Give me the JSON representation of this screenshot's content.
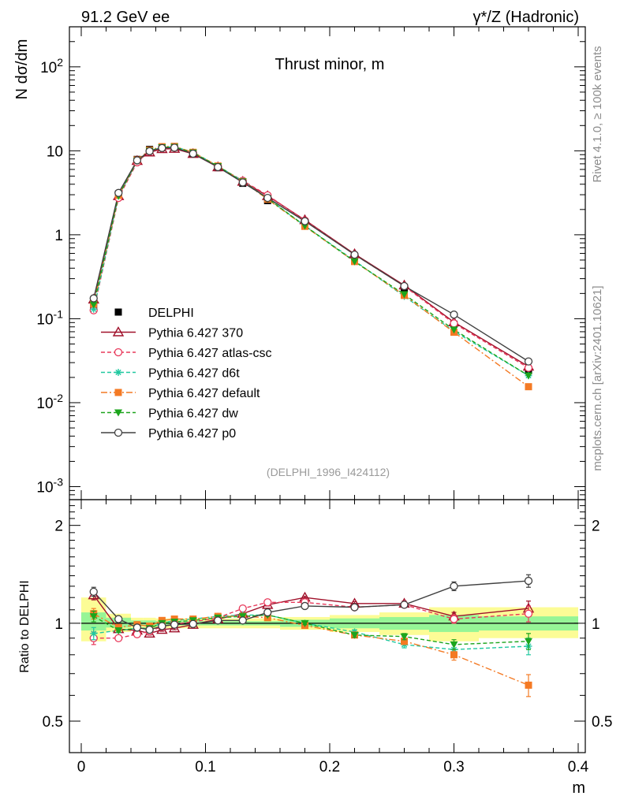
{
  "header": {
    "left": "91.2 GeV ee",
    "right": "γ*/Z (Hadronic)",
    "side_top": "Rivet 4.1.0, ≥ 100k events",
    "side_bottom": "mcplots.cern.ch [arXiv:2401.10621]"
  },
  "chart_data": [
    {
      "type": "line",
      "panel": "main",
      "title": "Thrust minor, m",
      "ylabel": "N  dσ/dm",
      "yscale": "log",
      "xlim": [
        0,
        0.4
      ],
      "ylim": [
        0.0007,
        300
      ],
      "yticks": [
        {
          "value": 0.001,
          "base": "10",
          "exp": "-3"
        },
        {
          "value": 0.01,
          "base": "10",
          "exp": "-2"
        },
        {
          "value": 0.1,
          "base": "10",
          "exp": "-1"
        },
        {
          "value": 1,
          "base": "1",
          "exp": ""
        },
        {
          "value": 10,
          "base": "10",
          "exp": ""
        },
        {
          "value": 100,
          "base": "10",
          "exp": "2"
        }
      ],
      "watermark": "(DELPHI_1996_I424112)",
      "x": [
        0.01,
        0.03,
        0.045,
        0.055,
        0.065,
        0.075,
        0.09,
        0.11,
        0.13,
        0.15,
        0.18,
        0.22,
        0.26,
        0.3,
        0.36
      ],
      "series": [
        {
          "name": "DELPHI",
          "color": "#000000",
          "marker": "square-filled",
          "dash": "none",
          "values": [
            0.14,
            3.05,
            7.9,
            10.4,
            11.0,
            11.0,
            9.3,
            6.3,
            4.1,
            2.55,
            1.28,
            0.52,
            0.215,
            0.086,
            0.024
          ]
        },
        {
          "name": "Pythia 6.427 370",
          "color": "#a0102a",
          "marker": "triangle-open",
          "dash": "solid",
          "values": [
            0.17,
            2.9,
            7.6,
            9.6,
            10.5,
            10.6,
            9.2,
            6.4,
            4.3,
            2.9,
            1.5,
            0.59,
            0.25,
            0.091,
            0.027
          ]
        },
        {
          "name": "Pythia 6.427 atlas-csc",
          "color": "#e8385a",
          "marker": "circle-open",
          "dash": "5,3",
          "values": [
            0.126,
            2.75,
            7.3,
            9.8,
            10.7,
            10.9,
            9.4,
            6.5,
            4.4,
            2.95,
            1.48,
            0.58,
            0.245,
            0.088,
            0.026
          ]
        },
        {
          "name": "Pythia 6.427 d6t",
          "color": "#20c8a0",
          "marker": "star",
          "dash": "5,3",
          "values": [
            0.13,
            2.9,
            7.6,
            10.0,
            11.0,
            11.2,
            9.6,
            6.6,
            4.35,
            2.7,
            1.28,
            0.49,
            0.185,
            0.071,
            0.021
          ]
        },
        {
          "name": "Pythia 6.427 default",
          "color": "#f47a24",
          "marker": "square-filled",
          "dash": "8,3,2,3",
          "values": [
            0.15,
            2.95,
            7.8,
            10.2,
            11.2,
            11.3,
            9.6,
            6.6,
            4.3,
            2.65,
            1.26,
            0.48,
            0.19,
            0.069,
            0.0155
          ]
        },
        {
          "name": "Pythia 6.427 dw",
          "color": "#1ca51c",
          "marker": "triangle-down-filled",
          "dash": "5,3",
          "values": [
            0.147,
            2.9,
            7.6,
            10.0,
            11.0,
            11.1,
            9.5,
            6.55,
            4.3,
            2.7,
            1.28,
            0.48,
            0.195,
            0.074,
            0.021
          ]
        },
        {
          "name": "Pythia 6.427 p0",
          "color": "#404040",
          "marker": "circle-open",
          "dash": "solid",
          "values": [
            0.175,
            3.15,
            7.7,
            9.9,
            10.8,
            10.9,
            9.25,
            6.4,
            4.2,
            2.75,
            1.45,
            0.58,
            0.245,
            0.112,
            0.031
          ]
        }
      ]
    },
    {
      "type": "line",
      "panel": "ratio",
      "ylabel": "Ratio to DELPHI",
      "yscale": "log",
      "xlabel": "m",
      "xlim": [
        0,
        0.4
      ],
      "ylim": [
        0.4,
        2.4
      ],
      "xticks": [
        {
          "value": 0,
          "label": "0"
        },
        {
          "value": 0.1,
          "label": "0.1"
        },
        {
          "value": 0.2,
          "label": "0.2"
        },
        {
          "value": 0.3,
          "label": "0.3"
        },
        {
          "value": 0.4,
          "label": "0.4"
        }
      ],
      "yticks": [
        {
          "value": 0.5,
          "label": "0.5"
        },
        {
          "value": 1,
          "label": "1"
        },
        {
          "value": 2,
          "label": "2"
        }
      ],
      "reference_line": 1,
      "uncertainty_bands": [
        {
          "x0": 0.0,
          "x1": 0.02,
          "stat": [
            0.95,
            1.08
          ],
          "total": [
            0.88,
            1.2
          ]
        },
        {
          "x0": 0.02,
          "x1": 0.04,
          "stat": [
            0.97,
            1.04
          ],
          "total": [
            0.94,
            1.07
          ]
        },
        {
          "x0": 0.04,
          "x1": 0.05,
          "stat": [
            0.98,
            1.02
          ],
          "total": [
            0.96,
            1.04
          ]
        },
        {
          "x0": 0.05,
          "x1": 0.06,
          "stat": [
            0.98,
            1.02
          ],
          "total": [
            0.96,
            1.04
          ]
        },
        {
          "x0": 0.06,
          "x1": 0.07,
          "stat": [
            0.985,
            1.015
          ],
          "total": [
            0.965,
            1.035
          ]
        },
        {
          "x0": 0.07,
          "x1": 0.08,
          "stat": [
            0.985,
            1.015
          ],
          "total": [
            0.965,
            1.035
          ]
        },
        {
          "x0": 0.08,
          "x1": 0.1,
          "stat": [
            0.985,
            1.015
          ],
          "total": [
            0.965,
            1.035
          ]
        },
        {
          "x0": 0.1,
          "x1": 0.12,
          "stat": [
            0.985,
            1.015
          ],
          "total": [
            0.965,
            1.035
          ]
        },
        {
          "x0": 0.12,
          "x1": 0.14,
          "stat": [
            0.985,
            1.015
          ],
          "total": [
            0.965,
            1.035
          ]
        },
        {
          "x0": 0.14,
          "x1": 0.16,
          "stat": [
            0.985,
            1.015
          ],
          "total": [
            0.965,
            1.035
          ]
        },
        {
          "x0": 0.16,
          "x1": 0.2,
          "stat": [
            0.975,
            1.025
          ],
          "total": [
            0.955,
            1.045
          ]
        },
        {
          "x0": 0.2,
          "x1": 0.24,
          "stat": [
            0.965,
            1.035
          ],
          "total": [
            0.94,
            1.06
          ]
        },
        {
          "x0": 0.24,
          "x1": 0.28,
          "stat": [
            0.955,
            1.045
          ],
          "total": [
            0.92,
            1.08
          ]
        },
        {
          "x0": 0.28,
          "x1": 0.32,
          "stat": [
            0.94,
            1.06
          ],
          "total": [
            0.88,
            1.12
          ]
        },
        {
          "x0": 0.32,
          "x1": 0.4,
          "stat": [
            0.95,
            1.05
          ],
          "total": [
            0.9,
            1.12
          ]
        }
      ],
      "x": [
        0.01,
        0.03,
        0.045,
        0.055,
        0.065,
        0.075,
        0.09,
        0.11,
        0.13,
        0.15,
        0.18,
        0.22,
        0.26,
        0.3,
        0.36
      ],
      "series": [
        {
          "name": "Pythia 6.427 370",
          "color": "#a0102a",
          "marker": "triangle-open",
          "dash": "solid",
          "values": [
            1.22,
            0.96,
            0.95,
            0.93,
            0.955,
            0.965,
            0.99,
            1.03,
            1.07,
            1.14,
            1.2,
            1.15,
            1.15,
            1.05,
            1.11
          ],
          "err": [
            0.04,
            0.01,
            0.01,
            0.01,
            0.01,
            0.01,
            0.01,
            0.01,
            0.01,
            0.01,
            0.01,
            0.015,
            0.02,
            0.03,
            0.06
          ]
        },
        {
          "name": "Pythia 6.427 atlas-csc",
          "color": "#e8385a",
          "marker": "circle-open",
          "dash": "5,3",
          "values": [
            0.9,
            0.9,
            0.925,
            0.945,
            0.975,
            0.995,
            1.01,
            1.04,
            1.11,
            1.16,
            1.16,
            1.12,
            1.14,
            1.03,
            1.07
          ],
          "err": [
            0.04,
            0.01,
            0.01,
            0.01,
            0.01,
            0.01,
            0.01,
            0.01,
            0.01,
            0.01,
            0.01,
            0.015,
            0.02,
            0.03,
            0.06
          ]
        },
        {
          "name": "Pythia 6.427 d6t",
          "color": "#20c8a0",
          "marker": "star",
          "dash": "5,3",
          "values": [
            0.93,
            0.95,
            0.965,
            0.965,
            1.0,
            1.02,
            1.03,
            1.05,
            1.06,
            1.06,
            1.0,
            0.94,
            0.86,
            0.83,
            0.85
          ],
          "err": [
            0.04,
            0.01,
            0.01,
            0.01,
            0.01,
            0.01,
            0.01,
            0.01,
            0.01,
            0.01,
            0.01,
            0.015,
            0.02,
            0.03,
            0.05
          ]
        },
        {
          "name": "Pythia 6.427 default",
          "color": "#f47a24",
          "marker": "square-filled",
          "dash": "8,3,2,3",
          "values": [
            1.07,
            0.97,
            0.99,
            0.98,
            1.02,
            1.03,
            1.03,
            1.05,
            1.05,
            1.04,
            0.985,
            0.92,
            0.88,
            0.8,
            0.645
          ],
          "err": [
            0.04,
            0.01,
            0.01,
            0.01,
            0.01,
            0.01,
            0.01,
            0.01,
            0.01,
            0.01,
            0.01,
            0.015,
            0.02,
            0.03,
            0.05
          ]
        },
        {
          "name": "Pythia 6.427 dw",
          "color": "#1ca51c",
          "marker": "triangle-down-filled",
          "dash": "5,3",
          "values": [
            1.05,
            0.95,
            0.965,
            0.965,
            1.0,
            1.01,
            1.02,
            1.04,
            1.05,
            1.06,
            1.0,
            0.92,
            0.91,
            0.86,
            0.88
          ],
          "err": [
            0.04,
            0.01,
            0.01,
            0.01,
            0.01,
            0.01,
            0.01,
            0.01,
            0.01,
            0.01,
            0.01,
            0.015,
            0.02,
            0.03,
            0.05
          ]
        },
        {
          "name": "Pythia 6.427 p0",
          "color": "#404040",
          "marker": "circle-open",
          "dash": "solid",
          "values": [
            1.25,
            1.03,
            0.97,
            0.955,
            0.98,
            0.99,
            0.995,
            1.02,
            1.02,
            1.08,
            1.13,
            1.12,
            1.14,
            1.3,
            1.35
          ],
          "err": [
            0.04,
            0.01,
            0.01,
            0.01,
            0.01,
            0.01,
            0.01,
            0.01,
            0.01,
            0.01,
            0.01,
            0.015,
            0.02,
            0.04,
            0.06
          ]
        }
      ]
    }
  ]
}
